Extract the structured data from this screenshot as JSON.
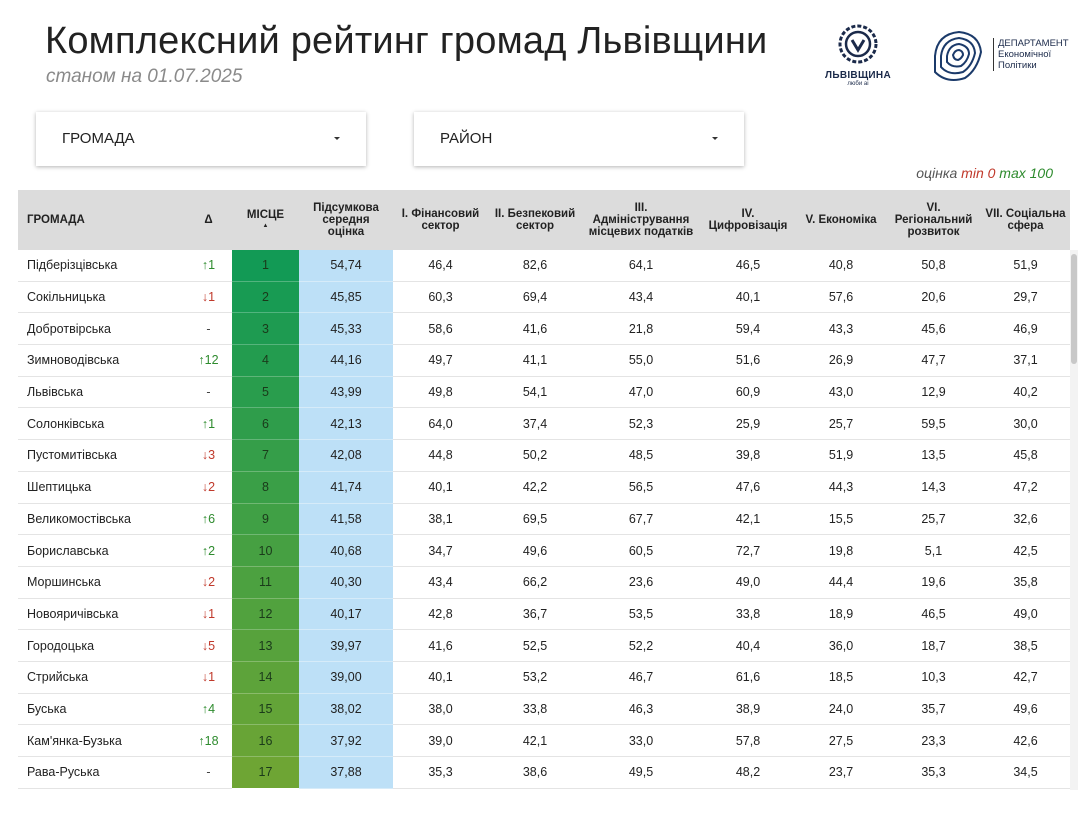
{
  "header": {
    "title": "Комплексний рейтинг громад Львівщини",
    "subtitle": "станом на 01.07.2025",
    "logo1": {
      "name": "ЛЬВІВЩИНА",
      "tagline": "люби ai"
    },
    "logo2": {
      "lines": [
        "ДЕПАРТАМЕНТ",
        "Економічної",
        "Політики"
      ]
    }
  },
  "filters": [
    "ГРОМАДА",
    "РАЙОН"
  ],
  "legend": {
    "label": "оцінка",
    "min": "min 0",
    "max": "max 100"
  },
  "table": {
    "columns": [
      "ГРОМАДА",
      "Δ",
      "МІСЦЕ",
      "Підсумкова середня оцінка",
      "I. Фінансовий сектор",
      "II. Безпековий сектор",
      "III. Адміністрування місцевих податків",
      "IV. Цифровізація",
      "V. Економіка",
      "VI. Регіональний розвиток",
      "VII. Соціальна сфера"
    ],
    "rows": [
      [
        "Підберізцівська",
        "↑1",
        "1",
        "54,74",
        "46,4",
        "82,6",
        "64,1",
        "46,5",
        "40,8",
        "50,8",
        "51,9"
      ],
      [
        "Сокільницька",
        "↓1",
        "2",
        "45,85",
        "60,3",
        "69,4",
        "43,4",
        "40,1",
        "57,6",
        "20,6",
        "29,7"
      ],
      [
        "Добротвірська",
        "-",
        "3",
        "45,33",
        "58,6",
        "41,6",
        "21,8",
        "59,4",
        "43,3",
        "45,6",
        "46,9"
      ],
      [
        "Зимноводівська",
        "↑12",
        "4",
        "44,16",
        "49,7",
        "41,1",
        "55,0",
        "51,6",
        "26,9",
        "47,7",
        "37,1"
      ],
      [
        "Львівська",
        "-",
        "5",
        "43,99",
        "49,8",
        "54,1",
        "47,0",
        "60,9",
        "43,0",
        "12,9",
        "40,2"
      ],
      [
        "Солонківська",
        "↑1",
        "6",
        "42,13",
        "64,0",
        "37,4",
        "52,3",
        "25,9",
        "25,7",
        "59,5",
        "30,0"
      ],
      [
        "Пустомитівська",
        "↓3",
        "7",
        "42,08",
        "44,8",
        "50,2",
        "48,5",
        "39,8",
        "51,9",
        "13,5",
        "45,8"
      ],
      [
        "Шептицька",
        "↓2",
        "8",
        "41,74",
        "40,1",
        "42,2",
        "56,5",
        "47,6",
        "44,3",
        "14,3",
        "47,2"
      ],
      [
        "Великомостівська",
        "↑6",
        "9",
        "41,58",
        "38,1",
        "69,5",
        "67,7",
        "42,1",
        "15,5",
        "25,7",
        "32,6"
      ],
      [
        "Бориславська",
        "↑2",
        "10",
        "40,68",
        "34,7",
        "49,6",
        "60,5",
        "72,7",
        "19,8",
        "5,1",
        "42,5"
      ],
      [
        "Моршинська",
        "↓2",
        "11",
        "40,30",
        "43,4",
        "66,2",
        "23,6",
        "49,0",
        "44,4",
        "19,6",
        "35,8"
      ],
      [
        "Новояричівська",
        "↓1",
        "12",
        "40,17",
        "42,8",
        "36,7",
        "53,5",
        "33,8",
        "18,9",
        "46,5",
        "49,0"
      ],
      [
        "Городоцька",
        "↓5",
        "13",
        "39,97",
        "41,6",
        "52,5",
        "52,2",
        "40,4",
        "36,0",
        "18,7",
        "38,5"
      ],
      [
        "Стрийська",
        "↓1",
        "14",
        "39,00",
        "40,1",
        "53,2",
        "46,7",
        "61,6",
        "18,5",
        "10,3",
        "42,7"
      ],
      [
        "Буська",
        "↑4",
        "15",
        "38,02",
        "38,0",
        "33,8",
        "46,3",
        "38,9",
        "24,0",
        "35,7",
        "49,6"
      ],
      [
        "Кам'янка-Бузька",
        "↑18",
        "16",
        "37,92",
        "39,0",
        "42,1",
        "33,0",
        "57,8",
        "27,5",
        "23,3",
        "42,6"
      ],
      [
        "Рава-Руська",
        "-",
        "17",
        "37,88",
        "35,3",
        "38,6",
        "49,5",
        "48,2",
        "23,7",
        "35,3",
        "34,5"
      ]
    ]
  }
}
